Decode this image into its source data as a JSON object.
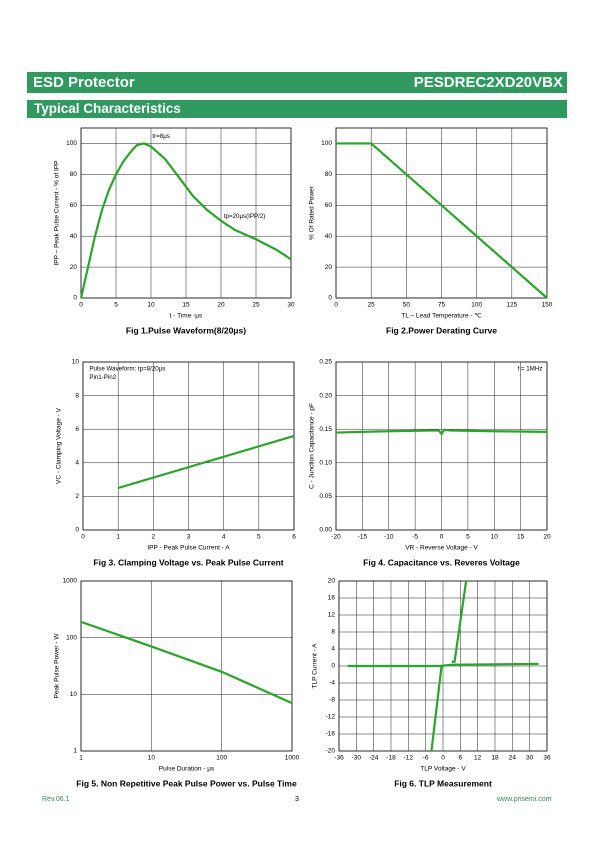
{
  "header": {
    "left": "ESD Protector",
    "right": "PESDREC2XD20VBX",
    "section": "Typical Characteristics"
  },
  "chart_data": [
    {
      "type": "line",
      "xlabel": "t - Time -μs",
      "ylabel": "IPP – Peak Pulse Current - % of IPP",
      "caption": "Fig 1.Pulse Waveform(8/20μs)",
      "xlim": [
        0,
        30
      ],
      "xticks": [
        0,
        5,
        10,
        15,
        20,
        25,
        30
      ],
      "ylim": [
        0,
        110
      ],
      "yticks": [
        0,
        20,
        40,
        60,
        80,
        100
      ],
      "grid": true,
      "annotations": [
        "tr=8μs",
        "tp=20μs(IPP/2)"
      ],
      "series": [
        {
          "color": "#2aa52a",
          "x": [
            0,
            1,
            2,
            3,
            4,
            5,
            6,
            7,
            8,
            9,
            10,
            12,
            14,
            16,
            18,
            20,
            22,
            25,
            28,
            30
          ],
          "values": [
            0,
            20,
            40,
            57,
            70,
            80,
            88,
            94,
            99,
            100,
            98,
            90,
            78,
            66,
            57,
            50,
            44,
            38,
            31,
            25
          ]
        }
      ]
    },
    {
      "type": "line",
      "xlabel": "TL – Lead Temperature - ℃",
      "ylabel": "% Of Rated Power",
      "caption": "Fig 2.Power Derating Curve",
      "xlim": [
        0,
        150
      ],
      "xticks": [
        0,
        25,
        50,
        75,
        100,
        125,
        150
      ],
      "ylim": [
        0,
        110
      ],
      "yticks": [
        0,
        20,
        40,
        60,
        80,
        100
      ],
      "grid": true,
      "annotations": [],
      "series": [
        {
          "color": "#2aa52a",
          "x": [
            0,
            25,
            150
          ],
          "values": [
            100,
            100,
            0
          ]
        }
      ]
    },
    {
      "type": "line",
      "xlabel": "IPP - Peak Pulse Current - A",
      "ylabel": "VC - Clamping Voltage - V",
      "caption": "Fig 3. Clamping Voltage vs. Peak Pulse Current",
      "xlim": [
        0,
        6
      ],
      "xticks": [
        0,
        1,
        2,
        3,
        4,
        5,
        6
      ],
      "ylim": [
        0,
        10
      ],
      "yticks": [
        0,
        2,
        4,
        6,
        8,
        10
      ],
      "grid": true,
      "annotations": [
        "Pulse Waveform: tp=8/20μs",
        "Pin1-Pin2"
      ],
      "series": [
        {
          "color": "#2aa52a",
          "x": [
            1,
            6
          ],
          "values": [
            2.5,
            5.6
          ]
        }
      ]
    },
    {
      "type": "line",
      "xlabel": "VR - Reverse Voltage - V",
      "ylabel": "C - Junction Capacitance - pF",
      "caption": "Fig 4. Capacitance vs. Reveres Voltage",
      "xlim": [
        -20,
        20
      ],
      "xticks": [
        -20,
        -15,
        -10,
        -5,
        0,
        5,
        10,
        15,
        20
      ],
      "ylim": [
        0,
        0.25
      ],
      "yticks": [
        {
          "value": 0,
          "label": "0.00"
        },
        {
          "value": 0.05,
          "label": "0.05"
        },
        {
          "value": 0.1,
          "label": "0.10"
        },
        {
          "value": 0.15,
          "label": "0.15"
        },
        {
          "value": 0.2,
          "label": "0.20"
        },
        {
          "value": 0.25,
          "label": "0.25"
        }
      ],
      "grid": true,
      "annotations": [
        "f = 1MHz"
      ],
      "series": [
        {
          "color": "#2aa52a",
          "x": [
            -20,
            -10,
            -2,
            -0.5,
            0,
            0.5,
            2,
            10,
            20
          ],
          "values": [
            0.145,
            0.147,
            0.148,
            0.148,
            0.143,
            0.149,
            0.148,
            0.147,
            0.146
          ]
        }
      ]
    },
    {
      "type": "line",
      "xlabel": "Pulse Duration - μs",
      "ylabel": "Peak Pulse Power - W",
      "caption": "Fig 5. Non Repetitive Peak Pulse Power vs. Pulse Time",
      "xscale": "log",
      "yscale": "log",
      "xlim": [
        1,
        1000
      ],
      "xticks": [
        1,
        10,
        100,
        1000
      ],
      "ylim": [
        1,
        1000
      ],
      "yticks": [
        1,
        10,
        100,
        1000
      ],
      "grid": true,
      "annotations": [],
      "series": [
        {
          "color": "#2aa52a",
          "x": [
            1,
            10,
            100,
            1000
          ],
          "values": [
            190,
            70,
            25,
            7
          ]
        }
      ]
    },
    {
      "type": "line",
      "xlabel": "TLP Voltage - V",
      "ylabel": "TLP Current - A",
      "caption": "Fig 6. TLP Measurement",
      "xlim": [
        -36,
        36
      ],
      "xticks": [
        -36,
        -30,
        -24,
        -18,
        -12,
        -6,
        0,
        6,
        12,
        18,
        24,
        30,
        36
      ],
      "ylim": [
        -20,
        20
      ],
      "yticks": [
        -20,
        -16,
        -12,
        -8,
        -4,
        0,
        4,
        8,
        12,
        16,
        20
      ],
      "grid": true,
      "annotations": [],
      "series": [
        {
          "color": "#2aa52a",
          "x": [
            -4,
            -0.5
          ],
          "values": [
            -20,
            0
          ]
        },
        {
          "color": "#2aa52a",
          "x": [
            -33,
            -1,
            3,
            33
          ],
          "values": [
            0,
            0,
            0.3,
            0.5
          ]
        },
        {
          "color": "#2aa52a",
          "x": [
            3,
            4,
            8
          ],
          "values": [
            1,
            1,
            20
          ]
        }
      ]
    }
  ],
  "footer": {
    "left": "Rev.06.1",
    "page": "3",
    "right": "www.prisemi.com"
  }
}
